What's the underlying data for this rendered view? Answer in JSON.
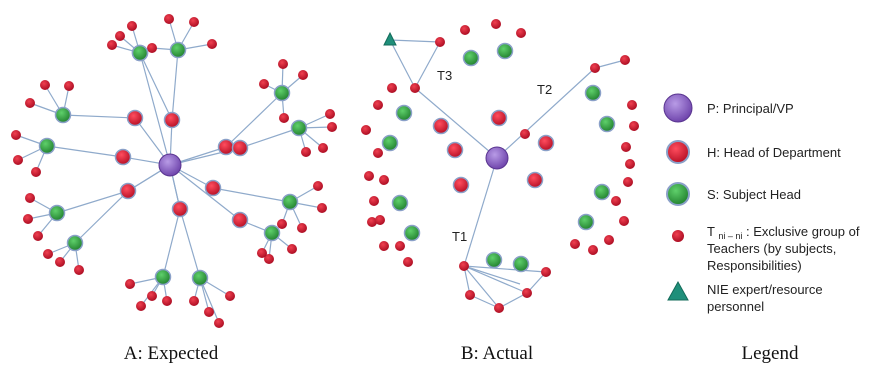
{
  "captions": {
    "expected": "A: Expected",
    "actual": "B: Actual",
    "legend": "Legend"
  },
  "edge_labels": {
    "t1": "T1",
    "t2": "T2",
    "t3": "T3"
  },
  "legend": {
    "principal": "P: Principal/VP",
    "hod": "H: Head of Department",
    "subject_head": "S: Subject Head",
    "teachers_t": "T",
    "teachers_sub": "ni – ni",
    "teachers_line1": ": Exclusive group of",
    "teachers_line2": "Teachers (by subjects,",
    "teachers_line3": "Responsibilities)",
    "nie_line1": "NIE expert/resource",
    "nie_line2": "personnel"
  },
  "colors": {
    "principal": "#7b4fb8",
    "hod": "#d0102a",
    "subject_head": "#2a9a3a",
    "teacher": "#c8142c",
    "nie": "#1f8f7a",
    "edge": "#8faacb"
  }
}
